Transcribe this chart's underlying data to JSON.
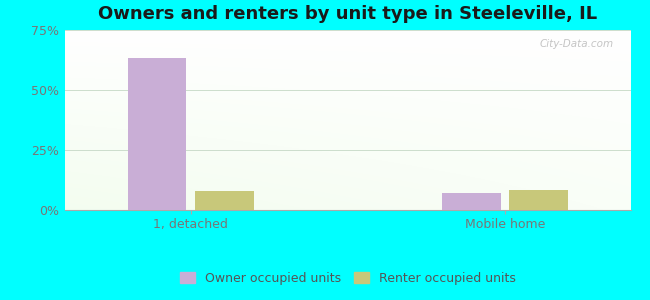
{
  "title": "Owners and renters by unit type in Steeleville, IL",
  "categories": [
    "1, detached",
    "Mobile home"
  ],
  "owner_values": [
    63.5,
    7.0
  ],
  "renter_values": [
    8.0,
    8.5
  ],
  "owner_color": "#c9aed6",
  "renter_color": "#c8c87a",
  "ylim": [
    0,
    75
  ],
  "yticks": [
    0,
    25,
    50,
    75
  ],
  "ytick_labels": [
    "0%",
    "25%",
    "50%",
    "75%"
  ],
  "bar_width": 0.28,
  "title_fontsize": 13,
  "tick_fontsize": 9,
  "legend_label_owner": "Owner occupied units",
  "legend_label_renter": "Renter occupied units",
  "figure_bg": "#00ffff",
  "watermark": "City-Data.com",
  "grid_color": "#ccddcc"
}
